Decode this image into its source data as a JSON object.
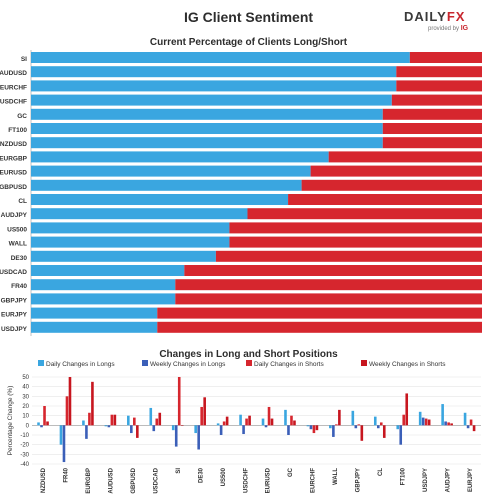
{
  "header": {
    "title": "IG Client Sentiment",
    "logo_word_left": "DAILY",
    "logo_word_right": "FX",
    "logo_sub": "provided by",
    "logo_sub_brand": "IG"
  },
  "colors": {
    "long": "#3aa6e0",
    "short": "#d6262e",
    "weekly_long": "#3b5fb8",
    "weekly_short": "#c7161f"
  },
  "chart_data": [
    {
      "type": "bar",
      "orientation": "horizontal",
      "stacked": true,
      "title": "Current Percentage of Clients Long/Short",
      "categories": [
        "SI",
        "AUDUSD",
        "EURCHF",
        "USDCHF",
        "GC",
        "FT100",
        "NZDUSD",
        "EURGBP",
        "EURUSD",
        "GBPUSD",
        "CL",
        "AUDJPY",
        "US500",
        "WALL",
        "DE30",
        "USDCAD",
        "FR40",
        "GBPJPY",
        "EURJPY",
        "USDJPY"
      ],
      "series": [
        {
          "values": [
            84,
            81,
            81,
            80,
            78,
            78,
            78,
            66,
            62,
            60,
            57,
            48,
            44,
            44,
            41,
            34,
            32,
            32,
            28,
            28
          ]
        },
        {
          "values": [
            16,
            19,
            19,
            20,
            22,
            22,
            22,
            34,
            38,
            40,
            43,
            52,
            56,
            56,
            59,
            66,
            68,
            68,
            72,
            72
          ]
        }
      ],
      "xlim": [
        0,
        100
      ]
    },
    {
      "type": "bar",
      "title": "Changes in Long and Short Positions",
      "ylabel": "Percentage Change (%)",
      "ylim": [
        -40,
        50
      ],
      "yticks": [
        50,
        40,
        30,
        20,
        10,
        0,
        -10,
        -20,
        -30,
        -40
      ],
      "categories": [
        "NZDUSD",
        "FR40",
        "EURGBP",
        "AUDUSD",
        "GBPUSD",
        "USDCAD",
        "SI",
        "DE30",
        "US500",
        "USDCHF",
        "EURUSD",
        "GC",
        "EURCHF",
        "WALL",
        "GBPJPY",
        "CL",
        "FT100",
        "USDJPY",
        "AUDJPY",
        "EURJPY"
      ],
      "series": [
        {
          "name": "Daily Changes in Longs",
          "values": [
            3,
            -20,
            5,
            -1,
            10,
            18,
            -5,
            -8,
            2,
            11,
            7,
            16,
            -1,
            -3,
            15,
            9,
            -4,
            14,
            22,
            13
          ]
        },
        {
          "name": "Weekly Changes in Longs",
          "values": [
            -2,
            -38,
            -14,
            -2,
            -8,
            -6,
            -22,
            -25,
            -10,
            -9,
            -2,
            -10,
            -4,
            -12,
            -3,
            -3,
            -20,
            8,
            4,
            -3
          ]
        },
        {
          "name": "Daily Changes in Shorts",
          "values": [
            20,
            30,
            13,
            11,
            8,
            7,
            50,
            19,
            4,
            7,
            19,
            10,
            -8,
            1,
            1,
            3,
            11,
            7,
            3,
            6
          ]
        },
        {
          "name": "Weekly Changes in Shorts",
          "values": [
            4,
            50,
            45,
            11,
            -13,
            13,
            0,
            29,
            9,
            10,
            7,
            5,
            -5,
            16,
            -16,
            -13,
            33,
            6,
            2,
            -6
          ]
        }
      ]
    }
  ]
}
